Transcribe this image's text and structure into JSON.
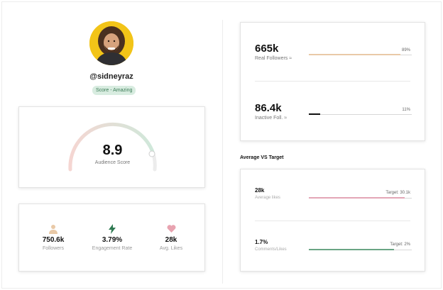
{
  "profile": {
    "username": "@sidneyraz",
    "score_badge": "Score - Amazing"
  },
  "audience_score": {
    "value": "8.9",
    "label": "Audience Score",
    "fraction": 0.89
  },
  "stats": [
    {
      "icon": "person-icon",
      "value": "750.6k",
      "label": "Followers",
      "color": "#e9c9a7"
    },
    {
      "icon": "lightning-icon",
      "value": "3.79%",
      "label": "Engagement Rate",
      "color": "#2f7a52"
    },
    {
      "icon": "heart-icon",
      "value": "28k",
      "label": "Avg. Likes",
      "color": "#e8a3b0"
    }
  ],
  "followers": {
    "real": {
      "value": "665k",
      "label": "Real Followers ≈",
      "percent": "89%",
      "fraction": 0.89,
      "color": "#e9c9a7"
    },
    "inactive": {
      "value": "86.4k",
      "label": "Inactive Foll. ≈",
      "percent": "11%",
      "fraction": 0.11,
      "color": "#111111"
    }
  },
  "average_vs_target": {
    "title": "Average VS Target",
    "likes": {
      "value": "28k",
      "label": "Average likes",
      "target": "Target: 30.1k",
      "fraction": 0.93,
      "color": "#e3a6b6"
    },
    "comments": {
      "value": "1.7%",
      "label": "Comments/Likes",
      "target": "Target: 2%",
      "fraction": 0.83,
      "color": "#6aa584"
    }
  },
  "colors": {
    "gauge_start": "#f5d6d2",
    "gauge_end": "#cfe8da",
    "badge_bg": "#d8ece0",
    "avatar_bg": "#f2c418"
  }
}
